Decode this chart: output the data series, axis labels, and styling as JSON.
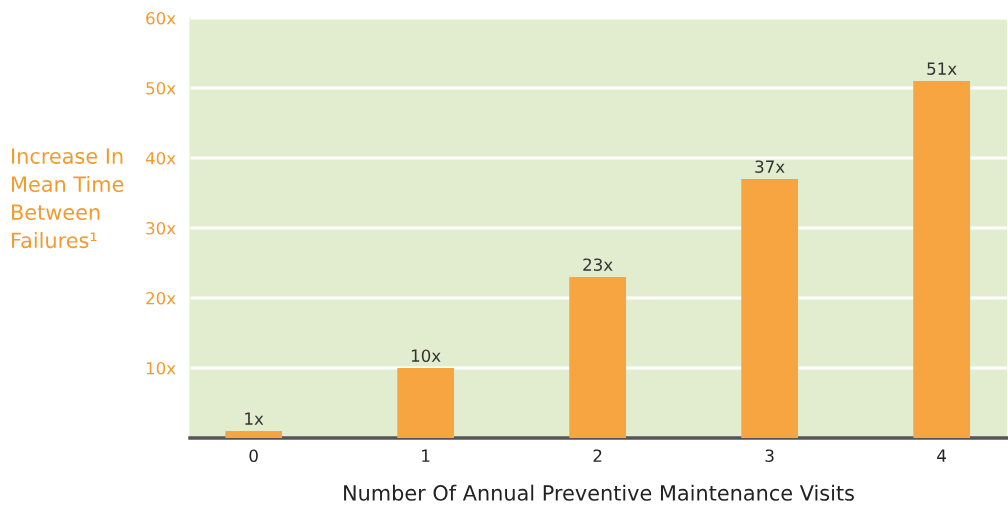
{
  "chart_data": {
    "type": "bar",
    "ylabel": "Increase In\nMean Time\nBetween\nFailures¹",
    "xlabel": "Number Of Annual Preventive Maintenance Visits",
    "categories": [
      "0",
      "1",
      "2",
      "3",
      "4"
    ],
    "values": [
      1,
      10,
      23,
      37,
      51
    ],
    "value_labels": [
      "1x",
      "10x",
      "23x",
      "37x",
      "51x"
    ],
    "color": "#f7a540",
    "ylim": [
      0,
      60
    ],
    "yticks": [
      {
        "value": 10,
        "label": "10x"
      },
      {
        "value": 20,
        "label": "20x"
      },
      {
        "value": 30,
        "label": "30x"
      },
      {
        "value": 40,
        "label": "40x"
      },
      {
        "value": 50,
        "label": "50x"
      },
      {
        "value": 60,
        "label": "60x"
      }
    ],
    "grid": "y"
  }
}
